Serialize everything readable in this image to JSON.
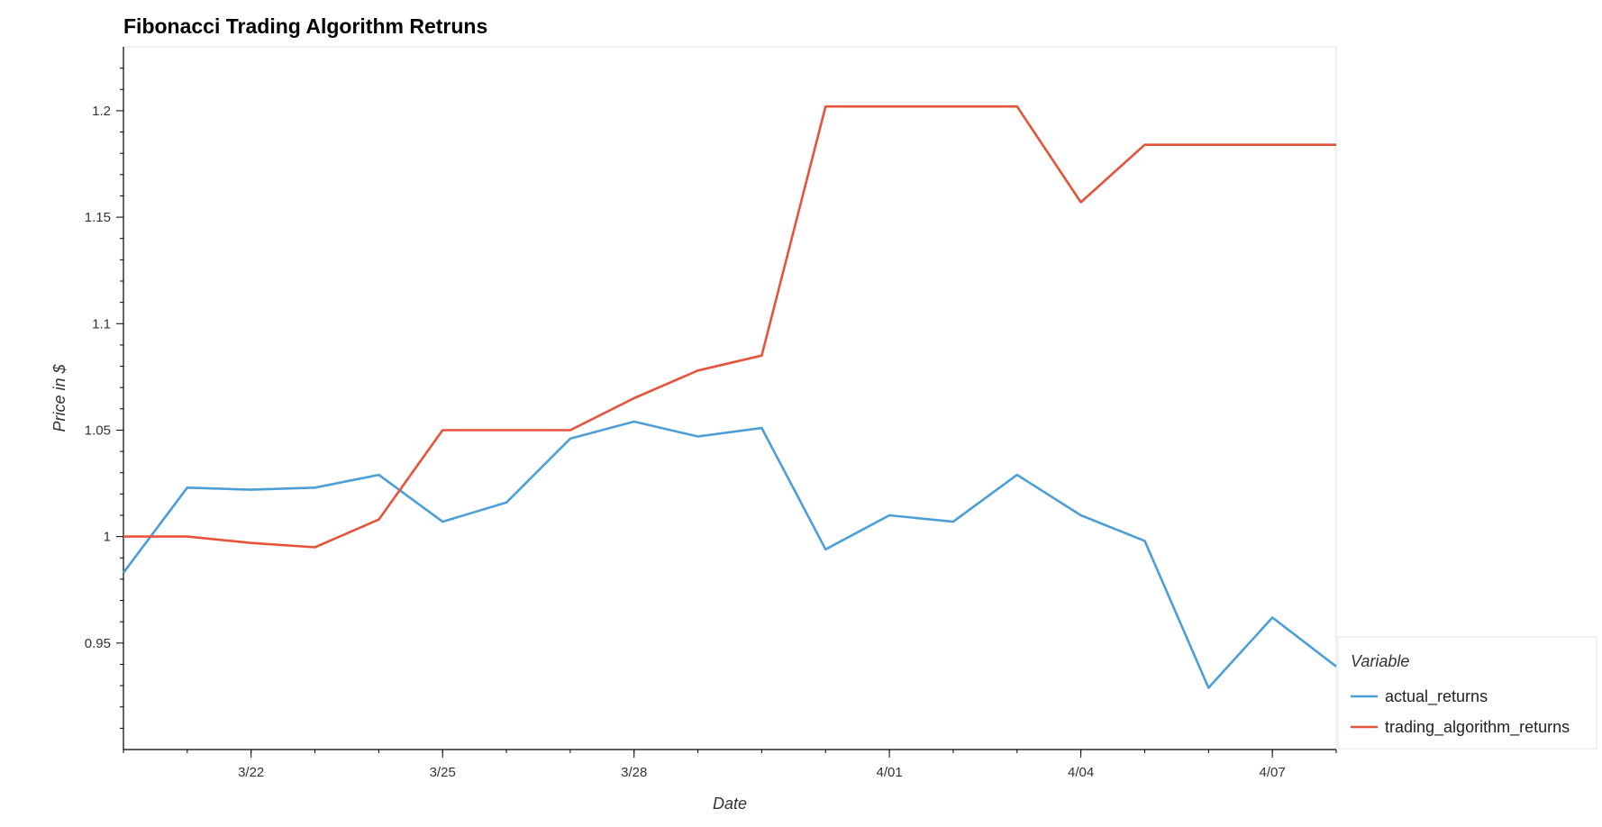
{
  "chart_data": {
    "type": "line",
    "title": "Fibonacci Trading Algorithm Retruns",
    "xlabel": "Date",
    "ylabel": "Price in $",
    "x": [
      "3/20",
      "3/21",
      "3/22",
      "3/23",
      "3/24",
      "3/25",
      "3/26",
      "3/27",
      "3/28",
      "3/29",
      "3/30",
      "3/31",
      "4/01",
      "4/02",
      "4/03",
      "4/04",
      "4/05",
      "4/06",
      "4/07",
      "4/08"
    ],
    "x_tick_labels": [
      "3/22",
      "3/25",
      "3/28",
      "4/01",
      "4/04",
      "4/07"
    ],
    "y_ticks": [
      0.95,
      1,
      1.05,
      1.1,
      1.15,
      1.2
    ],
    "y_tick_labels": [
      "0.95",
      "1",
      "1.05",
      "1.1",
      "1.15",
      "1.2"
    ],
    "ylim": [
      0.9,
      1.23
    ],
    "grid": false,
    "legend_title": "Variable",
    "legend_position": "right-bottom",
    "series": [
      {
        "name": "actual_returns",
        "color": "#4c9fd6",
        "values": [
          0.983,
          1.023,
          1.022,
          1.023,
          1.029,
          1.007,
          1.016,
          1.046,
          1.054,
          1.047,
          1.051,
          0.994,
          1.01,
          1.007,
          1.029,
          1.01,
          0.998,
          0.929,
          0.962,
          0.939
        ]
      },
      {
        "name": "trading_algorithm_returns",
        "color": "#e5533a",
        "values": [
          1.0,
          1.0,
          0.997,
          0.995,
          1.008,
          1.05,
          1.05,
          1.05,
          1.065,
          1.078,
          1.085,
          1.202,
          1.202,
          1.202,
          1.202,
          1.157,
          1.184,
          1.184,
          1.184,
          1.184
        ]
      }
    ]
  }
}
